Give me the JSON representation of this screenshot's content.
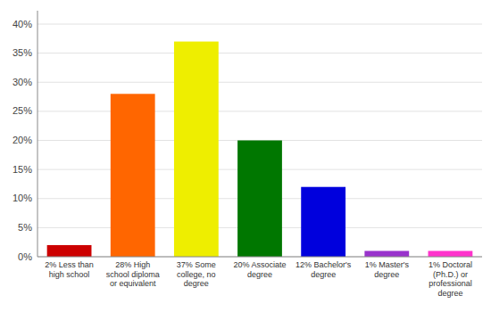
{
  "chart_data": {
    "type": "bar",
    "categories": [
      "2% Less than\nhigh school",
      "28% High\nschool diploma\nor equivalent",
      "37% Some\ncollege, no\ndegree",
      "20% Associate\ndegree",
      "12% Bachelor's\ndegree",
      "1% Master's\ndegree",
      "1% Doctoral\n(Ph.D.) or\nprofessional\ndegree"
    ],
    "values": [
      2,
      28,
      37,
      20,
      12,
      1,
      1
    ],
    "colors": [
      "#cc0000",
      "#ff6600",
      "#eeee00",
      "#007700",
      "#0000dd",
      "#9933cc",
      "#ff33cc"
    ],
    "ylim": [
      0,
      42.3
    ],
    "yticks": [
      {
        "value": 0,
        "label": "0%"
      },
      {
        "value": 5,
        "label": "5%"
      },
      {
        "value": 10,
        "label": "10%"
      },
      {
        "value": 15,
        "label": "15%"
      },
      {
        "value": 20,
        "label": "20%"
      },
      {
        "value": 25,
        "label": "25%"
      },
      {
        "value": 30,
        "label": "30%"
      },
      {
        "value": 35,
        "label": "35%"
      },
      {
        "value": 40,
        "label": "40%"
      }
    ],
    "grid": true
  }
}
